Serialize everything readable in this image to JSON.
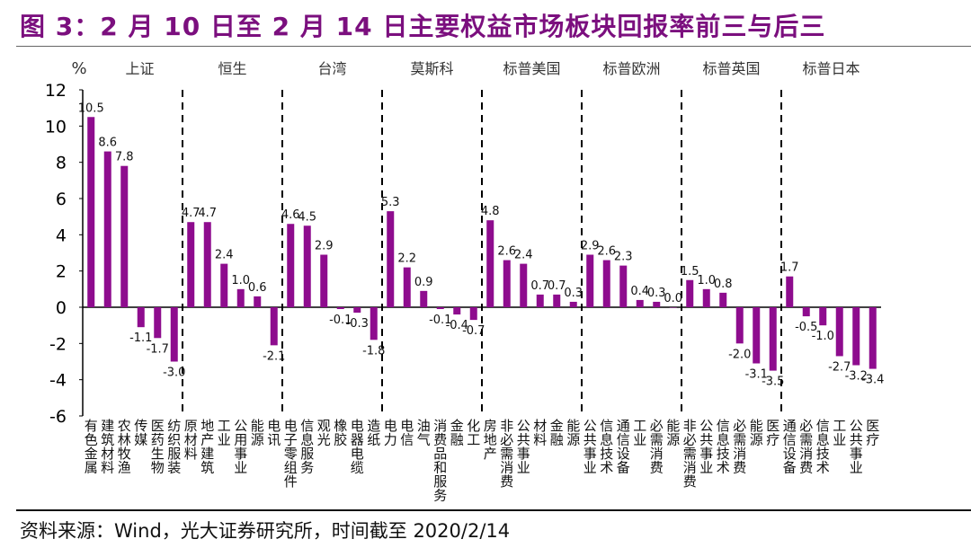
{
  "title": "图 3：2 月 10 日至 2 月 14 日主要权益市场板块回报率前三与后三",
  "source": "资料来源：Wind，光大证券研究所，时间截至 2020/2/14",
  "chart_data": {
    "type": "bar",
    "title": "",
    "ylabel": "%",
    "xlabel": "",
    "ylim": [
      -6,
      12
    ],
    "yticks": [
      -6,
      -4,
      -2,
      0,
      2,
      4,
      6,
      8,
      10,
      12
    ],
    "grid": false,
    "bar_color": "#8E0C8E",
    "title_color": "#7B0F7E",
    "groups": [
      {
        "name": "上证",
        "categories": [
          "有色金属",
          "建筑材料",
          "农林牧渔",
          "传媒",
          "医药生物",
          "纺织服装"
        ],
        "values": [
          10.5,
          8.6,
          7.8,
          -1.1,
          -1.7,
          -3.0
        ]
      },
      {
        "name": "恒生",
        "categories": [
          "原材料",
          "地产建筑",
          "工业",
          "公用事业",
          "能源",
          "电讯"
        ],
        "values": [
          4.7,
          4.7,
          2.4,
          1.0,
          0.6,
          -2.1
        ]
      },
      {
        "name": "台湾",
        "categories": [
          "电子零组件",
          "信息服务",
          "观光",
          "橡胶",
          "电器电缆",
          "造纸"
        ],
        "values": [
          4.6,
          4.5,
          2.9,
          -0.1,
          -0.3,
          -1.8
        ]
      },
      {
        "name": "莫斯科",
        "categories": [
          "电力",
          "电信",
          "油气",
          "消费品和服务",
          "金融",
          "化工"
        ],
        "values": [
          5.3,
          2.2,
          0.9,
          -0.1,
          -0.4,
          -0.7
        ]
      },
      {
        "name": "标普美国",
        "categories": [
          "房地产",
          "非必需消费",
          "公共事业",
          "材料",
          "金融",
          "能源"
        ],
        "values": [
          4.8,
          2.6,
          2.4,
          0.7,
          0.7,
          0.3
        ]
      },
      {
        "name": "标普欧洲",
        "categories": [
          "公共事业",
          "信息技术",
          "通信设备",
          "工业",
          "必需消费",
          "能源"
        ],
        "values": [
          2.9,
          2.6,
          2.3,
          0.4,
          0.3,
          0.0
        ]
      },
      {
        "name": "标普英国",
        "categories": [
          "非必需消费",
          "公共事业",
          "信息技术",
          "必需消费",
          "能源",
          "医疗"
        ],
        "values": [
          1.5,
          1.0,
          0.8,
          -2.0,
          -3.1,
          -3.5
        ]
      },
      {
        "name": "标普日本",
        "categories": [
          "通信设备",
          "必需消费",
          "信息技术",
          "工业",
          "公共事业",
          "医疗"
        ],
        "values": [
          1.7,
          -0.5,
          -1.0,
          -2.7,
          -3.2,
          -3.4
        ]
      }
    ]
  }
}
